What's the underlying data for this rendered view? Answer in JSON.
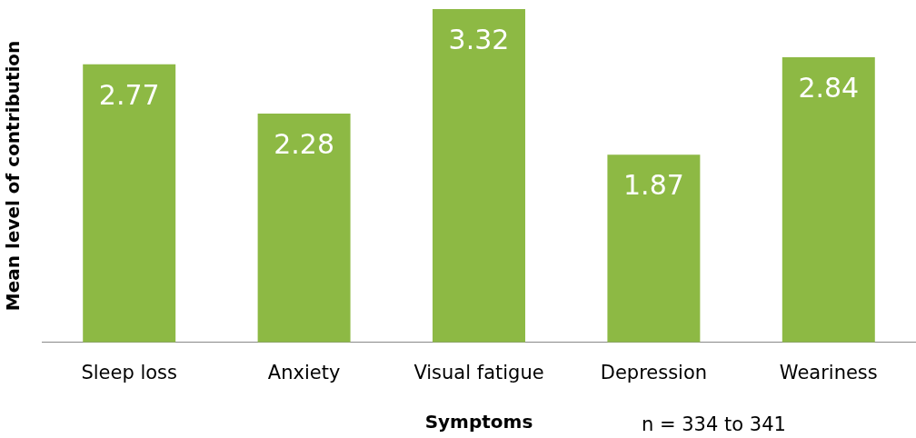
{
  "chart_data": {
    "type": "bar",
    "xlabel": "Symptoms",
    "ylabel": "Mean level of contribution",
    "categories": [
      "Sleep loss",
      "Anxiety",
      "Visual fatigue",
      "Depression",
      "Weariness"
    ],
    "values": [
      2.77,
      2.28,
      3.32,
      1.87,
      2.84
    ],
    "color": "#8db944",
    "data_labels": true,
    "grid": false,
    "legend": false,
    "annotations": [
      "n = 334 to 341"
    ]
  }
}
